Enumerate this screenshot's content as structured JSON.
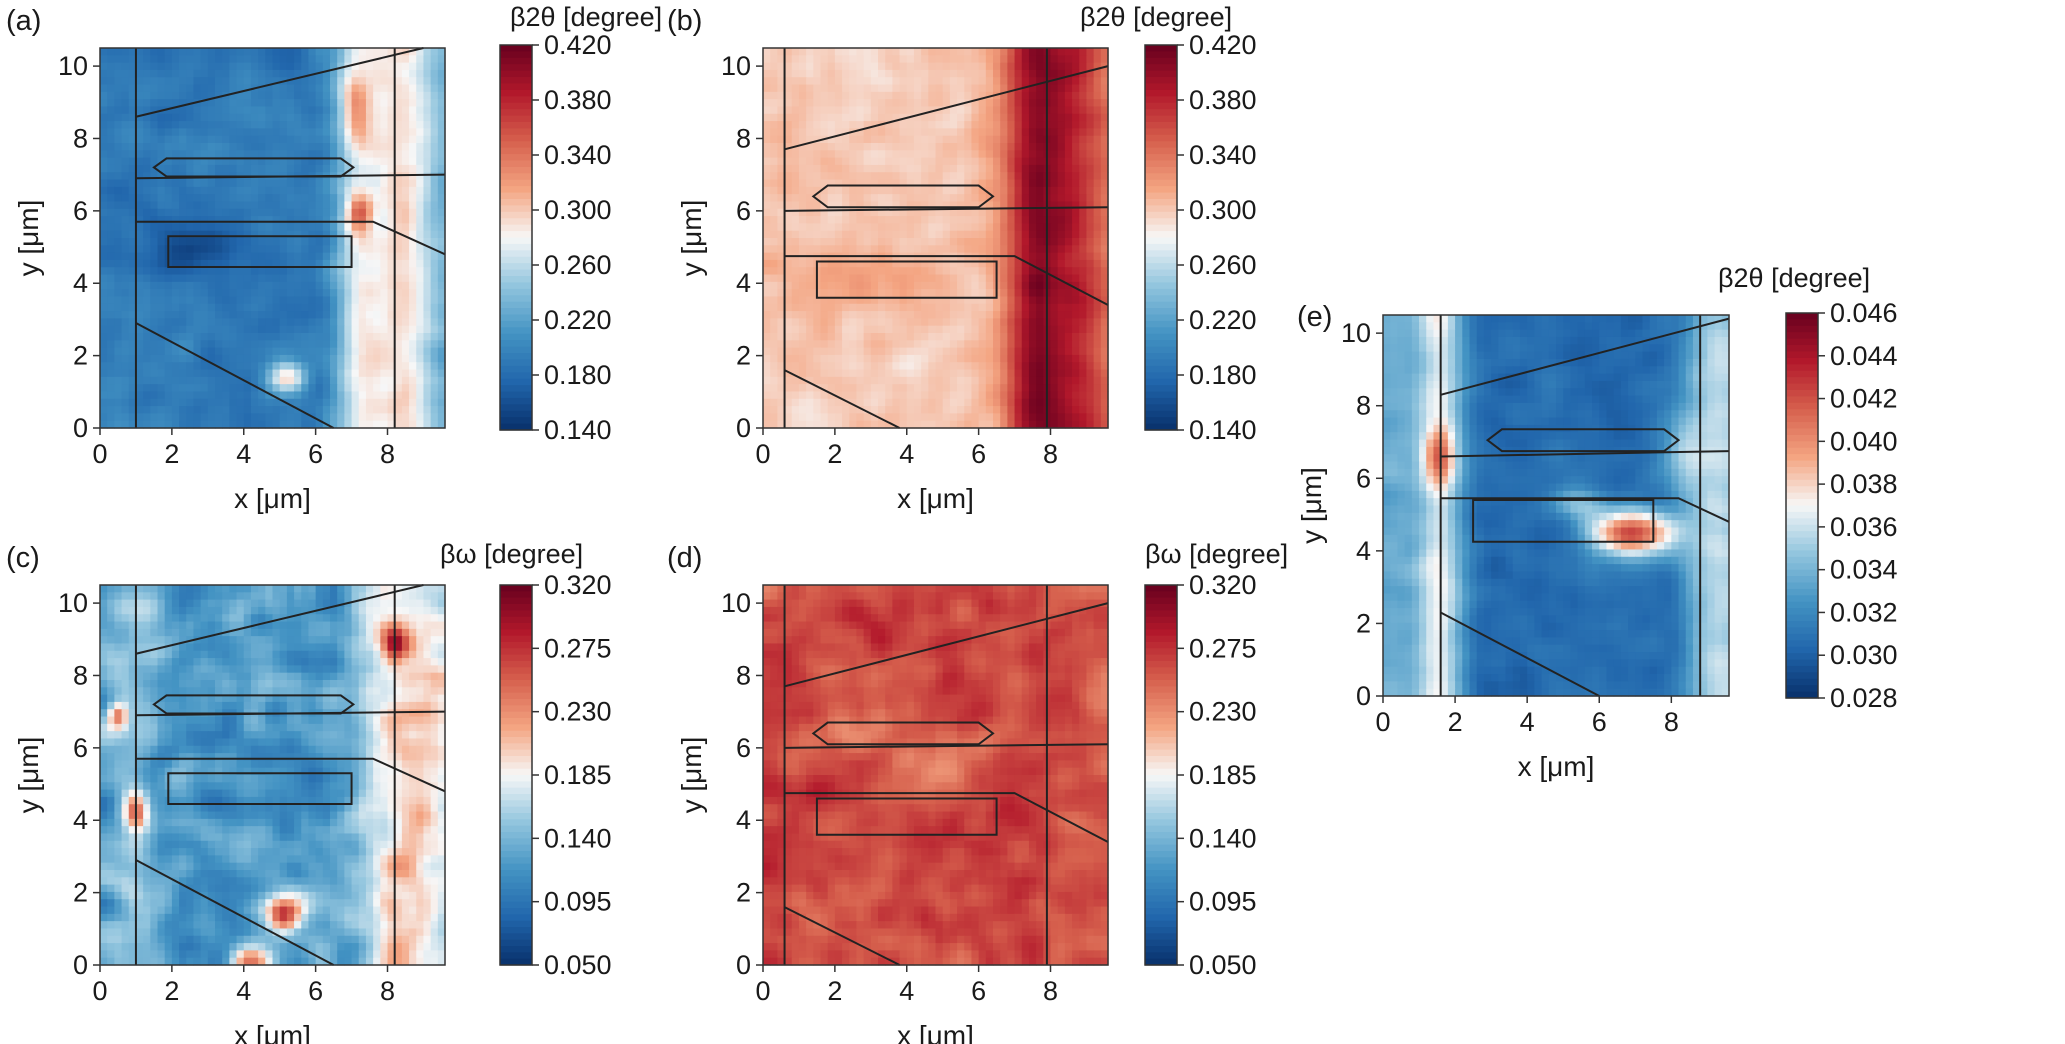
{
  "chart_data": [
    {
      "type": "heatmap",
      "panel_label": "(a)",
      "xlabel": "x [μm]",
      "ylabel": "y [μm]",
      "xlim": [
        0,
        9.6
      ],
      "ylim": [
        0,
        10.5
      ],
      "xticks": [
        "0",
        "2",
        "4",
        "6",
        "8"
      ],
      "yticks": [
        "0",
        "2",
        "4",
        "6",
        "8",
        "10"
      ],
      "colorbar": {
        "title": "β2θ [degree]",
        "range": [
          0.14,
          0.42
        ],
        "ticks": [
          "0.420",
          "0.380",
          "0.340",
          "0.300",
          "0.260",
          "0.220",
          "0.180",
          "0.140"
        ],
        "colormap": [
          "#08306b",
          "#2166ac",
          "#4393c3",
          "#92c5de",
          "#f7f7f7",
          "#f4a582",
          "#d6604d",
          "#b2182b",
          "#67001f"
        ]
      },
      "field": {
        "base": 0.19,
        "columns": [
          {
            "x": 7.2,
            "width": 0.45,
            "amp": 0.07
          },
          {
            "x": 8.4,
            "width": 0.6,
            "amp": 0.08
          }
        ],
        "spots": [
          {
            "x": 2.6,
            "y": 4.9,
            "sx": 0.9,
            "sy": 0.5,
            "amp": -0.04
          },
          {
            "x": 5.2,
            "y": 1.4,
            "sx": 0.35,
            "sy": 0.3,
            "amp": 0.1
          },
          {
            "x": 7.2,
            "y": 5.9,
            "sx": 0.25,
            "sy": 0.35,
            "amp": 0.08
          },
          {
            "x": 7.1,
            "y": 8.8,
            "sx": 0.25,
            "sy": 0.6,
            "amp": 0.05
          }
        ],
        "right_edge_ramp": {
          "from_x": 6.0,
          "amp": 0.03
        },
        "noise": 0.015,
        "seed": 11
      },
      "overlay": {
        "vlines": [
          1.0,
          8.2
        ],
        "segments": [
          [
            [
              1.0,
              8.6
            ],
            [
              9.0,
              10.5
            ]
          ],
          [
            [
              1.0,
              6.9
            ],
            [
              9.6,
              7.0
            ]
          ],
          [
            [
              1.0,
              5.7
            ],
            [
              7.6,
              5.7
            ],
            [
              9.6,
              4.8
            ]
          ],
          [
            [
              1.0,
              2.9
            ],
            [
              6.5,
              0.0
            ]
          ]
        ],
        "polygons": [
          [
            [
              1.5,
              7.2
            ],
            [
              1.85,
              7.45
            ],
            [
              6.7,
              7.45
            ],
            [
              7.05,
              7.2
            ],
            [
              6.7,
              6.95
            ],
            [
              1.85,
              6.95
            ]
          ],
          [
            [
              1.9,
              5.3
            ],
            [
              7.0,
              5.3
            ],
            [
              7.0,
              4.45
            ],
            [
              1.9,
              4.45
            ]
          ]
        ]
      }
    },
    {
      "type": "heatmap",
      "panel_label": "(b)",
      "xlabel": "x [μm]",
      "ylabel": "y [μm]",
      "xlim": [
        0,
        9.6
      ],
      "ylim": [
        0,
        10.5
      ],
      "xticks": [
        "0",
        "2",
        "4",
        "6",
        "8"
      ],
      "yticks": [
        "0",
        "2",
        "4",
        "6",
        "8",
        "10"
      ],
      "colorbar": {
        "title": "β2θ [degree]",
        "range": [
          0.14,
          0.42
        ],
        "ticks": [
          "0.420",
          "0.380",
          "0.340",
          "0.300",
          "0.260",
          "0.220",
          "0.180",
          "0.140"
        ],
        "colormap": [
          "#08306b",
          "#2166ac",
          "#4393c3",
          "#92c5de",
          "#f7f7f7",
          "#f4a582",
          "#d6604d",
          "#b2182b",
          "#67001f"
        ]
      },
      "field": {
        "base": 0.3,
        "columns": [
          {
            "x": 7.6,
            "width": 0.6,
            "amp": 0.09
          },
          {
            "x": 8.8,
            "width": 0.6,
            "amp": 0.05
          }
        ],
        "spots": [
          {
            "x": 3.0,
            "y": 4.2,
            "sx": 1.4,
            "sy": 0.6,
            "amp": 0.02
          }
        ],
        "right_edge_ramp": {
          "from_x": 5.5,
          "amp": 0.02
        },
        "noise": 0.012,
        "seed": 23
      },
      "overlay": {
        "vlines": [
          0.6,
          7.9
        ],
        "segments": [
          [
            [
              0.6,
              7.7
            ],
            [
              9.6,
              10.0
            ]
          ],
          [
            [
              0.6,
              6.0
            ],
            [
              9.6,
              6.1
            ]
          ],
          [
            [
              0.6,
              4.75
            ],
            [
              7.0,
              4.75
            ],
            [
              9.6,
              3.4
            ]
          ],
          [
            [
              0.6,
              1.6
            ],
            [
              3.8,
              0.0
            ]
          ]
        ],
        "polygons": [
          [
            [
              1.4,
              6.4
            ],
            [
              1.8,
              6.7
            ],
            [
              6.0,
              6.7
            ],
            [
              6.4,
              6.4
            ],
            [
              6.0,
              6.1
            ],
            [
              1.8,
              6.1
            ]
          ],
          [
            [
              1.5,
              4.6
            ],
            [
              6.5,
              4.6
            ],
            [
              6.5,
              3.6
            ],
            [
              1.5,
              3.6
            ]
          ]
        ]
      }
    },
    {
      "type": "heatmap",
      "panel_label": "(c)",
      "xlabel": "x [μm]",
      "ylabel": "y [μm]",
      "xlim": [
        0,
        9.6
      ],
      "ylim": [
        0,
        10.5
      ],
      "xticks": [
        "0",
        "2",
        "4",
        "6",
        "8"
      ],
      "yticks": [
        "0",
        "2",
        "4",
        "6",
        "8",
        "10"
      ],
      "colorbar": {
        "title": "βω [degree]",
        "range": [
          0.05,
          0.32
        ],
        "ticks": [
          "0.320",
          "0.275",
          "0.230",
          "0.185",
          "0.140",
          "0.095",
          "0.050"
        ],
        "colormap": [
          "#08306b",
          "#2166ac",
          "#4393c3",
          "#92c5de",
          "#f7f7f7",
          "#f4a582",
          "#d6604d",
          "#b2182b",
          "#67001f"
        ]
      },
      "field": {
        "base": 0.12,
        "columns": [
          {
            "x": 1.0,
            "width": 0.5,
            "amp": 0.03
          },
          {
            "x": 8.5,
            "width": 0.9,
            "amp": 0.06
          }
        ],
        "spots": [
          {
            "x": 5.1,
            "y": 1.35,
            "sx": 0.35,
            "sy": 0.35,
            "amp": 0.16
          },
          {
            "x": 4.2,
            "y": 0.1,
            "sx": 0.4,
            "sy": 0.25,
            "amp": 0.12
          },
          {
            "x": 1.0,
            "y": 4.2,
            "sx": 0.25,
            "sy": 0.35,
            "amp": 0.12
          },
          {
            "x": 8.2,
            "y": 8.8,
            "sx": 0.25,
            "sy": 0.4,
            "amp": 0.1
          },
          {
            "x": 0.5,
            "y": 6.9,
            "sx": 0.2,
            "sy": 0.25,
            "amp": 0.1
          },
          {
            "x": 5.8,
            "y": 2.0,
            "sx": 0.7,
            "sy": 0.5,
            "amp": 0.04
          }
        ],
        "right_edge_ramp": {
          "from_x": 6.5,
          "amp": 0.03
        },
        "noise": 0.03,
        "seed": 37
      },
      "overlay": {
        "vlines": [
          1.0,
          8.2
        ],
        "segments": [
          [
            [
              1.0,
              8.6
            ],
            [
              9.0,
              10.5
            ]
          ],
          [
            [
              1.0,
              6.9
            ],
            [
              9.6,
              7.0
            ]
          ],
          [
            [
              1.0,
              5.7
            ],
            [
              7.6,
              5.7
            ],
            [
              9.6,
              4.8
            ]
          ],
          [
            [
              1.0,
              2.9
            ],
            [
              6.5,
              0.0
            ]
          ]
        ],
        "polygons": [
          [
            [
              1.5,
              7.2
            ],
            [
              1.85,
              7.45
            ],
            [
              6.7,
              7.45
            ],
            [
              7.05,
              7.2
            ],
            [
              6.7,
              6.95
            ],
            [
              1.85,
              6.95
            ]
          ],
          [
            [
              1.9,
              5.3
            ],
            [
              7.0,
              5.3
            ],
            [
              7.0,
              4.45
            ],
            [
              1.9,
              4.45
            ]
          ]
        ]
      }
    },
    {
      "type": "heatmap",
      "panel_label": "(d)",
      "xlabel": "x [μm]",
      "ylabel": "y [μm]",
      "xlim": [
        0,
        9.6
      ],
      "ylim": [
        0,
        10.5
      ],
      "xticks": [
        "0",
        "2",
        "4",
        "6",
        "8"
      ],
      "yticks": [
        "0",
        "2",
        "4",
        "6",
        "8",
        "10"
      ],
      "colorbar": {
        "title": "βω [degree]",
        "range": [
          0.05,
          0.32
        ],
        "ticks": [
          "0.320",
          "0.275",
          "0.230",
          "0.185",
          "0.140",
          "0.095",
          "0.050"
        ],
        "colormap": [
          "#08306b",
          "#2166ac",
          "#4393c3",
          "#92c5de",
          "#f7f7f7",
          "#f4a582",
          "#d6604d",
          "#b2182b",
          "#67001f"
        ]
      },
      "field": {
        "base": 0.265,
        "columns": [],
        "spots": [
          {
            "x": 2.8,
            "y": 6.5,
            "sx": 0.9,
            "sy": 0.5,
            "amp": -0.03
          },
          {
            "x": 5.0,
            "y": 5.6,
            "sx": 0.8,
            "sy": 0.6,
            "amp": -0.03
          }
        ],
        "right_edge_ramp": {
          "from_x": 8.0,
          "amp": -0.01
        },
        "noise": 0.02,
        "seed": 53
      },
      "overlay": {
        "vlines": [
          0.6,
          7.9
        ],
        "segments": [
          [
            [
              0.6,
              7.7
            ],
            [
              9.6,
              10.0
            ]
          ],
          [
            [
              0.6,
              6.0
            ],
            [
              9.6,
              6.1
            ]
          ],
          [
            [
              0.6,
              4.75
            ],
            [
              7.0,
              4.75
            ],
            [
              9.6,
              3.4
            ]
          ],
          [
            [
              0.6,
              1.6
            ],
            [
              3.8,
              0.0
            ]
          ]
        ],
        "polygons": [
          [
            [
              1.4,
              6.4
            ],
            [
              1.8,
              6.7
            ],
            [
              6.0,
              6.7
            ],
            [
              6.4,
              6.4
            ],
            [
              6.0,
              6.1
            ],
            [
              1.8,
              6.1
            ]
          ],
          [
            [
              1.5,
              4.6
            ],
            [
              6.5,
              4.6
            ],
            [
              6.5,
              3.6
            ],
            [
              1.5,
              3.6
            ]
          ]
        ]
      }
    },
    {
      "type": "heatmap",
      "panel_label": "(e)",
      "xlabel": "x [μm]",
      "ylabel": "y [μm]",
      "xlim": [
        0,
        9.6
      ],
      "ylim": [
        0,
        10.5
      ],
      "xticks": [
        "0",
        "2",
        "4",
        "6",
        "8"
      ],
      "yticks": [
        "0",
        "2",
        "4",
        "6",
        "8",
        "10"
      ],
      "colorbar": {
        "title": "β2θ [degree]",
        "range": [
          0.028,
          0.046
        ],
        "ticks": [
          "0.046",
          "0.044",
          "0.042",
          "0.040",
          "0.038",
          "0.036",
          "0.034",
          "0.032",
          "0.030",
          "0.028"
        ],
        "colormap": [
          "#08306b",
          "#2166ac",
          "#4393c3",
          "#92c5de",
          "#f7f7f7",
          "#f4a582",
          "#d6604d",
          "#b2182b",
          "#67001f"
        ]
      },
      "field": {
        "base": 0.0305,
        "columns": [
          {
            "x": 1.6,
            "width": 0.45,
            "amp": 0.0055
          },
          {
            "x": 0.3,
            "width": 0.7,
            "amp": 0.003
          },
          {
            "x": 9.2,
            "width": 0.6,
            "amp": 0.0035
          }
        ],
        "spots": [
          {
            "x": 1.6,
            "y": 6.6,
            "sx": 0.3,
            "sy": 0.5,
            "amp": 0.0055
          },
          {
            "x": 6.9,
            "y": 4.5,
            "sx": 0.85,
            "sy": 0.45,
            "amp": 0.012
          },
          {
            "x": 5.4,
            "y": 5.3,
            "sx": 0.5,
            "sy": 0.3,
            "amp": 0.004
          },
          {
            "x": 8.2,
            "y": 6.6,
            "sx": 0.5,
            "sy": 0.8,
            "amp": 0.003
          }
        ],
        "right_edge_ramp": {
          "from_x": 8.0,
          "amp": 0.002
        },
        "noise": 0.0008,
        "seed": 71
      },
      "overlay": {
        "vlines": [
          1.6,
          8.8
        ],
        "segments": [
          [
            [
              1.6,
              8.3
            ],
            [
              9.6,
              10.4
            ]
          ],
          [
            [
              1.6,
              6.6
            ],
            [
              9.6,
              6.75
            ]
          ],
          [
            [
              1.6,
              5.45
            ],
            [
              8.2,
              5.45
            ],
            [
              9.6,
              4.8
            ]
          ],
          [
            [
              1.6,
              2.3
            ],
            [
              6.0,
              0.0
            ]
          ]
        ],
        "polygons": [
          [
            [
              2.9,
              7.05
            ],
            [
              3.3,
              7.35
            ],
            [
              7.8,
              7.35
            ],
            [
              8.2,
              7.05
            ],
            [
              7.8,
              6.75
            ],
            [
              3.3,
              6.75
            ]
          ],
          [
            [
              2.5,
              5.4
            ],
            [
              7.5,
              5.4
            ],
            [
              7.5,
              4.25
            ],
            [
              2.5,
              4.25
            ]
          ]
        ]
      }
    }
  ]
}
